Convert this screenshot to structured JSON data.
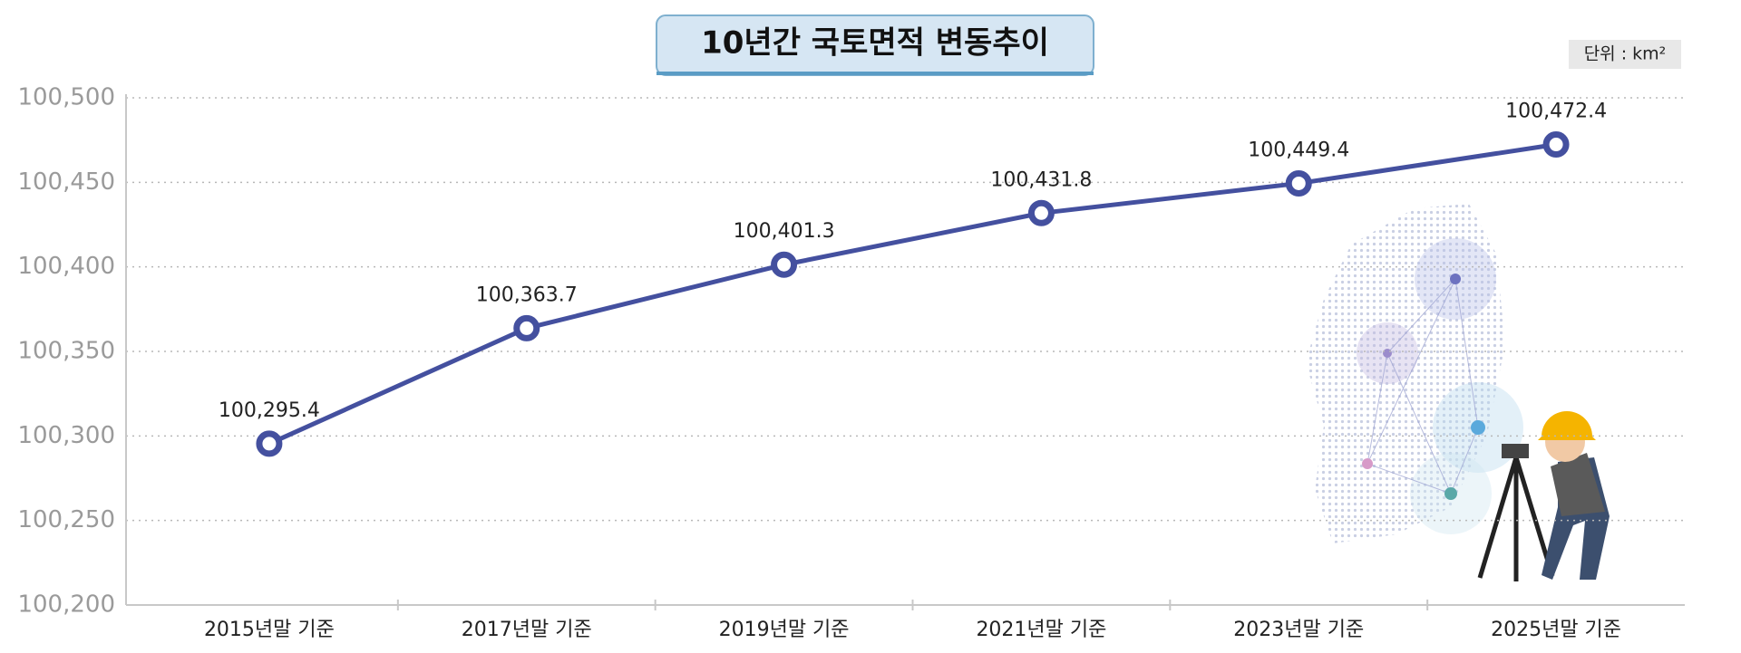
{
  "chart_data": {
    "type": "line",
    "title": "10년간 국토면적 변동추이",
    "unit": "단위 : km²",
    "categories": [
      "2015년말 기준",
      "2017년말 기준",
      "2019년말 기준",
      "2021년말 기준",
      "2023년말 기준",
      "2025년말 기준"
    ],
    "series": [
      {
        "name": "국토면적",
        "color": "#44509f",
        "values": [
          100295.4,
          100363.7,
          100401.3,
          100431.8,
          100449.4,
          100472.4
        ],
        "value_labels": [
          "100,295.4",
          "100,363.7",
          "100,401.3",
          "100,431.8",
          "100,449.4",
          "100,472.4"
        ]
      }
    ],
    "ylim": [
      100200,
      100500
    ],
    "yticks": [
      {
        "value": 100200,
        "label": "100,200"
      },
      {
        "value": 100250,
        "label": "100,250"
      },
      {
        "value": 100300,
        "label": "100,300"
      },
      {
        "value": 100350,
        "label": "100,350"
      },
      {
        "value": 100400,
        "label": "100,400"
      },
      {
        "value": 100450,
        "label": "100,450"
      },
      {
        "value": 100500,
        "label": "100,500"
      }
    ],
    "grid": true
  }
}
